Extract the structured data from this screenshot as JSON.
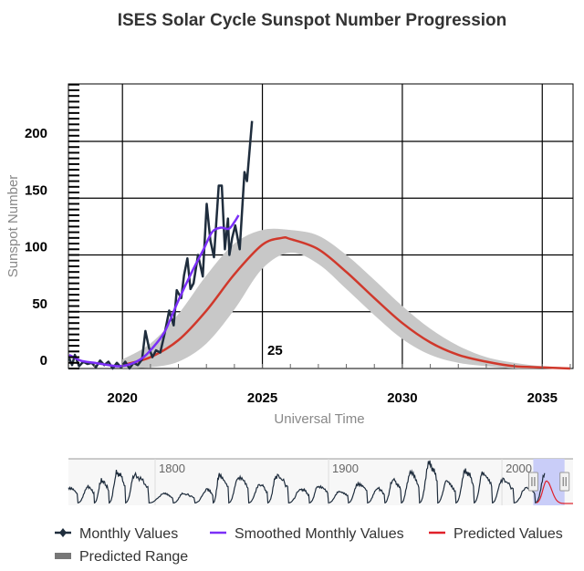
{
  "chart_data": {
    "type": "line",
    "title": "ISES Solar Cycle Sunspot Number Progression",
    "xlabel": "Universal Time",
    "ylabel": "Sunspot Number",
    "xlim": [
      2018.07,
      2036.1
    ],
    "ylim": [
      0,
      250
    ],
    "x_ticks": [
      "2020",
      "2025",
      "2030",
      "2035"
    ],
    "y_ticks": [
      "0",
      "50",
      "100",
      "150",
      "200"
    ],
    "grid": true,
    "annotation": "25",
    "annotation_x": 2025.4,
    "annotation_y": 15,
    "legend_position": "bottom",
    "colors": {
      "monthly": "#1f2d3d",
      "smoothed": "#7b2ff7",
      "predicted": "#d0382b",
      "range": "#c8c8c8"
    },
    "series": [
      {
        "name": "Monthly Values",
        "x": [
          2018.1,
          2018.2,
          2018.3,
          2018.45,
          2018.6,
          2018.75,
          2018.9,
          2019.05,
          2019.2,
          2019.35,
          2019.5,
          2019.65,
          2019.8,
          2019.95,
          2020.1,
          2020.25,
          2020.4,
          2020.55,
          2020.7,
          2020.82,
          2020.95,
          2021.07,
          2021.2,
          2021.35,
          2021.5,
          2021.67,
          2021.83,
          2021.94,
          2022.1,
          2022.2,
          2022.32,
          2022.43,
          2022.54,
          2022.7,
          2022.87,
          2023.01,
          2023.14,
          2023.27,
          2023.44,
          2023.55,
          2023.66,
          2023.77,
          2023.82,
          2023.92,
          2024.03,
          2024.19,
          2024.36,
          2024.45,
          2024.63
        ],
        "y": [
          9,
          3,
          12,
          2,
          6,
          4,
          5,
          1,
          7,
          3,
          6,
          0,
          5,
          1,
          6,
          0,
          5,
          3,
          8,
          33,
          18,
          10,
          16,
          14,
          30,
          51,
          38,
          69,
          62,
          82,
          97,
          70,
          75,
          100,
          81,
          145,
          113,
          98,
          161,
          161,
          105,
          132,
          100,
          115,
          126,
          105,
          173,
          165,
          218
        ]
      },
      {
        "name": "Smoothed Monthly Values",
        "x": [
          2018.1,
          2018.5,
          2019.0,
          2019.5,
          2019.9,
          2020.3,
          2020.7,
          2021.0,
          2021.5,
          2022.0,
          2022.5,
          2022.9,
          2023.2,
          2023.5,
          2023.8,
          2024.0,
          2024.15
        ],
        "y": [
          12,
          7,
          5,
          3,
          2,
          4,
          9,
          16,
          32,
          60,
          86,
          105,
          120,
          124,
          123,
          129,
          135
        ]
      },
      {
        "name": "Predicted Values",
        "x": [
          2020,
          2021,
          2022,
          2023,
          2024,
          2025,
          2025.7,
          2026,
          2027,
          2028,
          2029,
          2030,
          2031,
          2032,
          2033,
          2034,
          2035,
          2036
        ],
        "y": [
          3,
          10,
          25,
          51,
          83,
          109,
          115,
          114,
          105,
          85,
          62,
          40,
          23,
          12,
          6,
          2,
          1,
          0
        ]
      },
      {
        "name": "Predicted Range",
        "x": [
          2020,
          2021,
          2022,
          2023,
          2024,
          2025,
          2026,
          2027,
          2028,
          2029,
          2030,
          2031,
          2032,
          2033,
          2034,
          2035,
          2036
        ],
        "low": [
          0,
          1,
          6,
          22,
          52,
          88,
          102,
          92,
          70,
          47,
          26,
          12,
          5,
          2,
          0,
          0,
          0
        ],
        "high": [
          8,
          22,
          48,
          82,
          110,
          122,
          122,
          117,
          100,
          78,
          55,
          35,
          20,
          10,
          5,
          2,
          1
        ]
      }
    ],
    "navigator": {
      "xlim": [
        1750,
        2041
      ],
      "labels": [
        "1800",
        "1900",
        "2000"
      ],
      "label_years": [
        1800,
        1900,
        2000
      ],
      "selected_range": [
        2018.07,
        2036.1
      ],
      "cycle_peaks_year": [
        1750,
        1761,
        1769,
        1778,
        1788,
        1805,
        1816,
        1830,
        1837,
        1848,
        1860,
        1870,
        1884,
        1894,
        1906,
        1917,
        1928,
        1937,
        1947,
        1958,
        1968,
        1979,
        1989,
        2000,
        2014,
        2024.6
      ],
      "cycle_peaks_value": [
        80,
        86,
        116,
        158,
        141,
        49,
        49,
        71,
        146,
        131,
        98,
        140,
        74,
        88,
        64,
        105,
        78,
        119,
        152,
        201,
        111,
        165,
        158,
        121,
        82,
        140
      ]
    }
  },
  "legend": [
    {
      "label": "Monthly Values",
      "key": "monthly"
    },
    {
      "label": "Smoothed Monthly Values",
      "key": "smoothed"
    },
    {
      "label": "Predicted Values",
      "key": "predicted"
    },
    {
      "label": "Predicted Range",
      "key": "range"
    }
  ]
}
